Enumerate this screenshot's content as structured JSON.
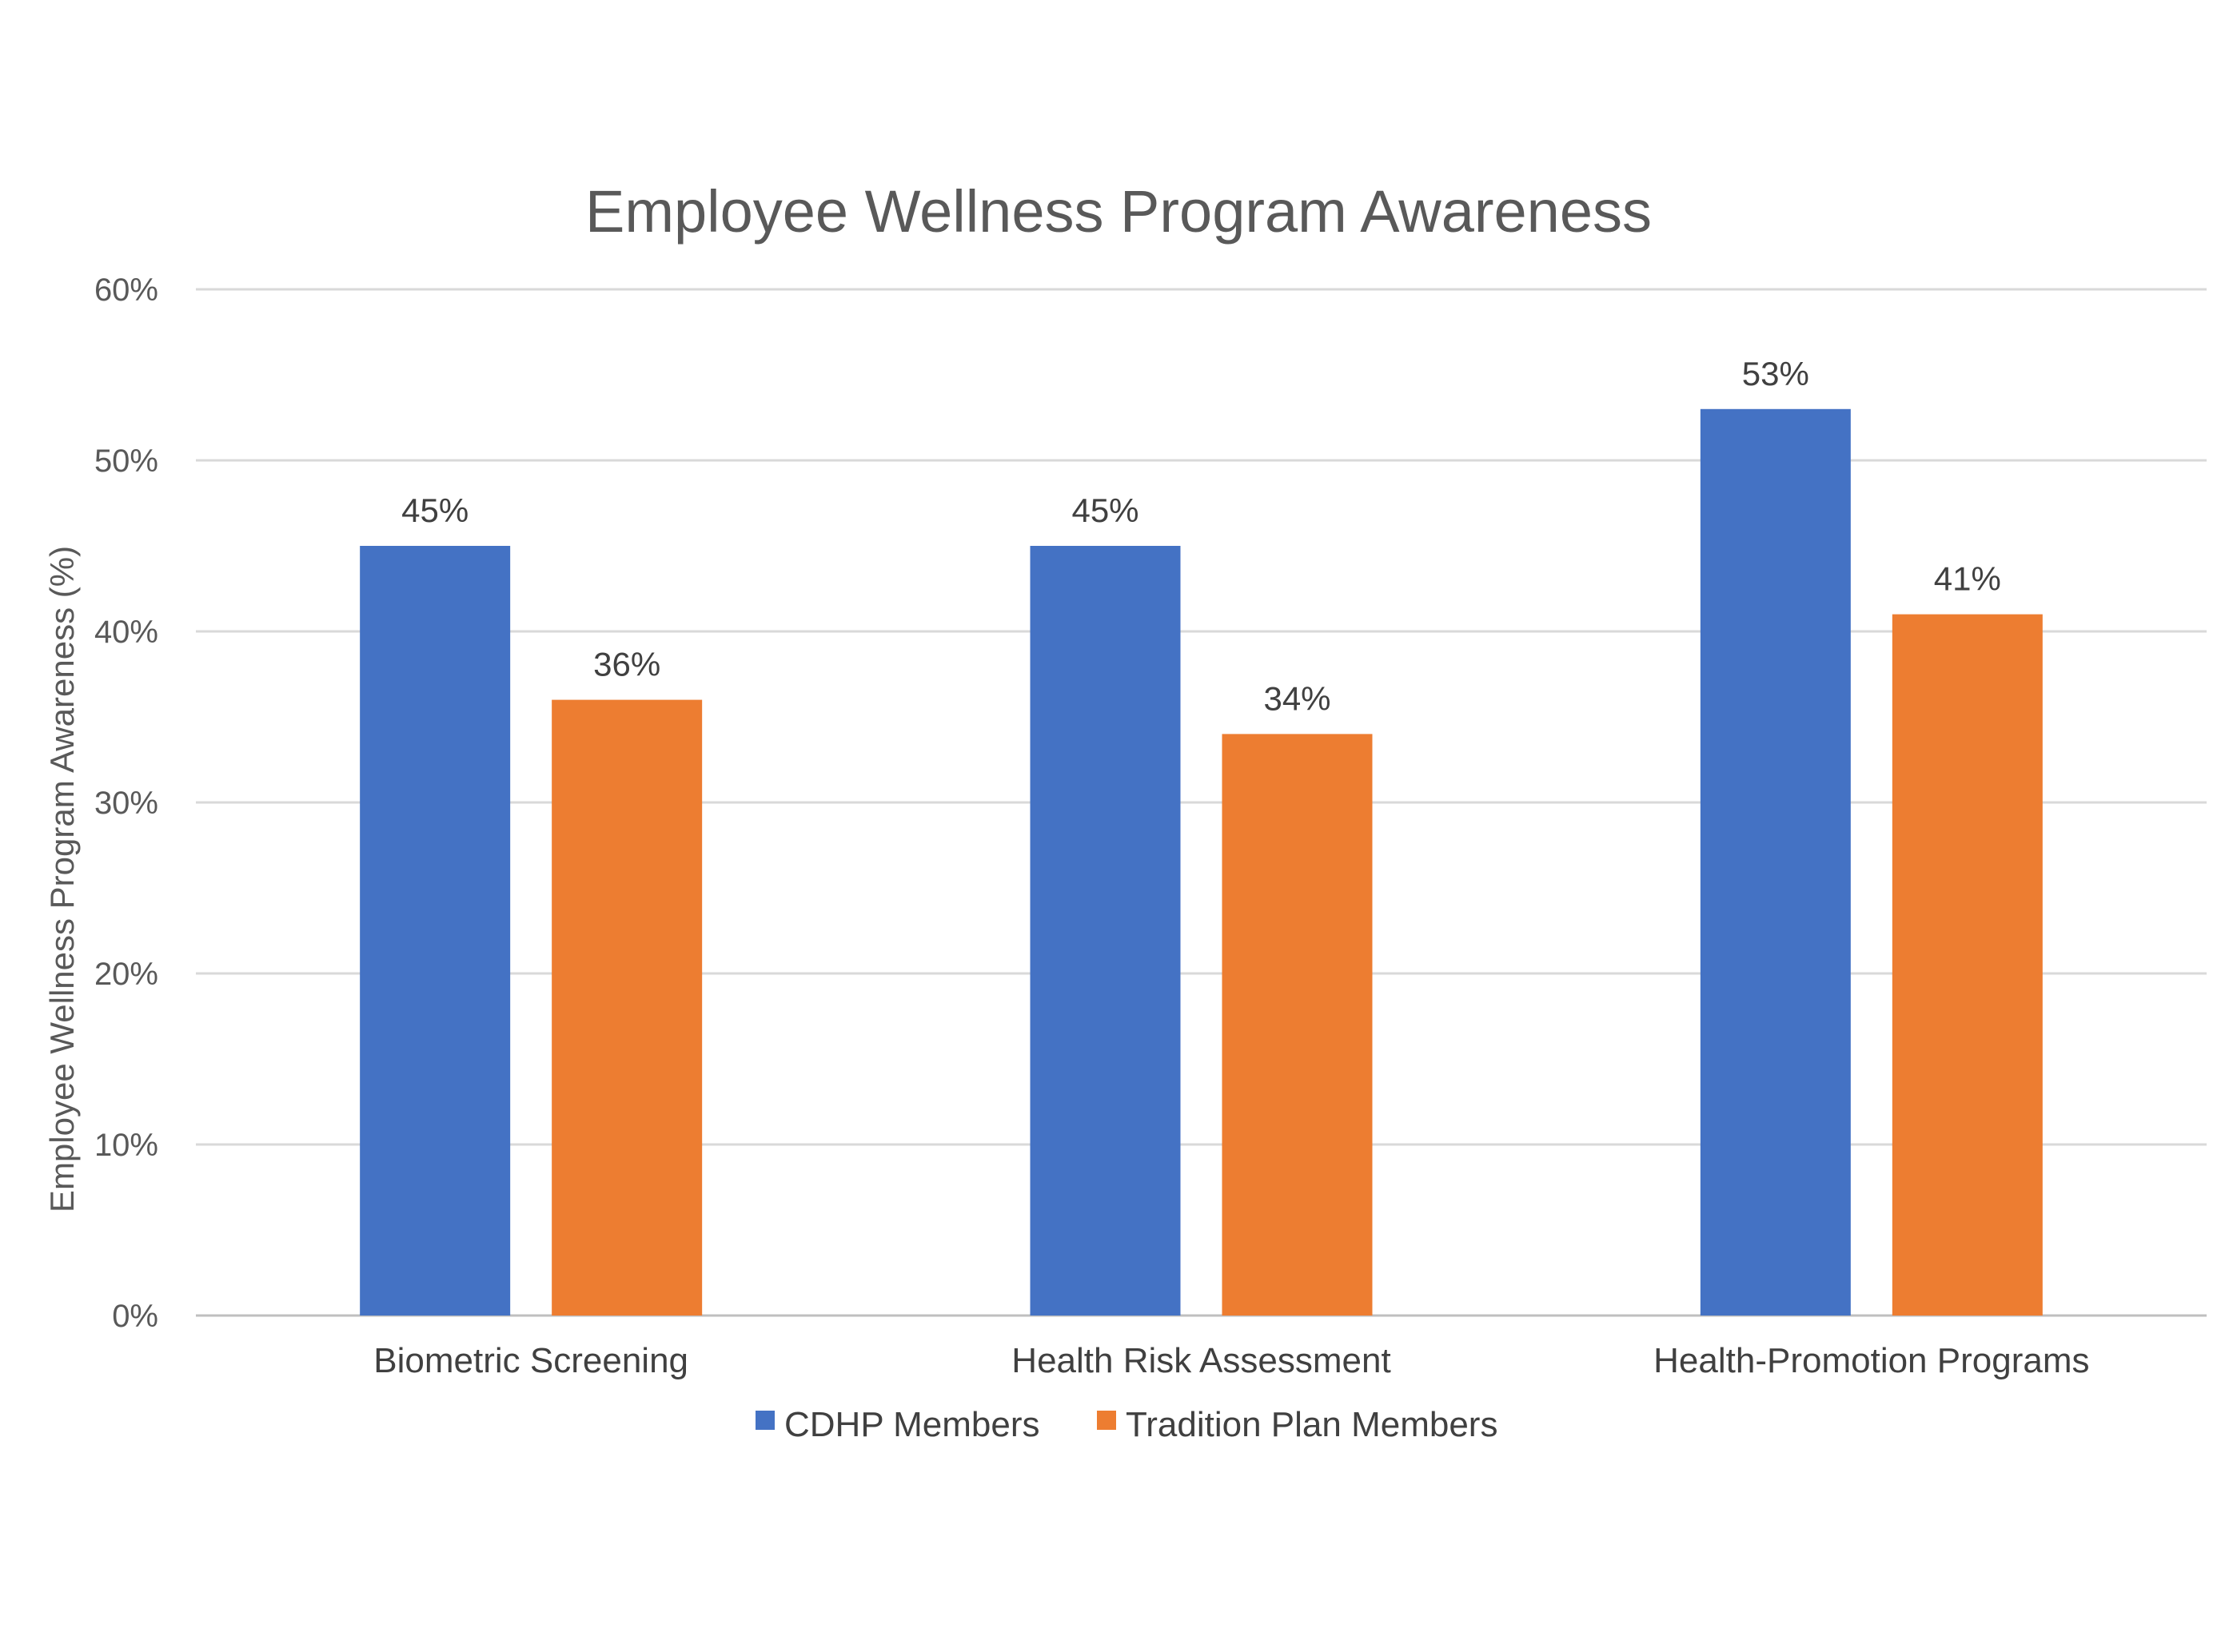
{
  "chart_data": {
    "type": "bar",
    "title": "Employee Wellness Program Awareness",
    "ylabel": "Employee Wellness Program Awareness (%)",
    "xlabel": "",
    "categories": [
      "Biometric Screening",
      "Health Risk Assessment",
      "Health-Promotion Programs"
    ],
    "series": [
      {
        "name": "CDHP Members",
        "values": [
          45,
          45,
          53
        ],
        "labels": [
          "45%",
          "45%",
          "53%"
        ],
        "color": "#4472c4"
      },
      {
        "name": "Tradition Plan Members",
        "values": [
          36,
          34,
          41
        ],
        "labels": [
          "36%",
          "34%",
          "41%"
        ],
        "color": "#ed7d31"
      }
    ],
    "ylim": [
      0,
      60
    ],
    "yticks": [
      0,
      10,
      20,
      30,
      40,
      50,
      60
    ],
    "ytick_labels": [
      "0%",
      "10%",
      "20%",
      "30%",
      "40%",
      "50%",
      "60%"
    ],
    "grid": true,
    "legend_position": "bottom"
  }
}
